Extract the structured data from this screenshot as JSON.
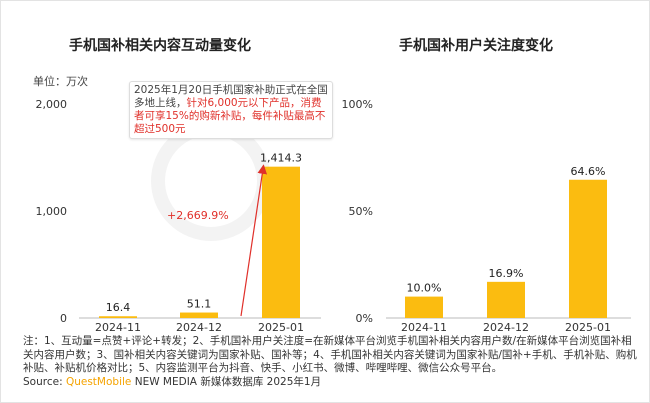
{
  "watermark": "QUEST MOBILE",
  "chart_data": [
    {
      "type": "bar",
      "title": "手机国补相关内容互动量变化",
      "unit_label": "单位：万次",
      "categories": [
        "2024-11",
        "2024-12",
        "2025-01"
      ],
      "values": [
        16.4,
        51.1,
        1414.3
      ],
      "value_labels": [
        "16.4",
        "51.1",
        "1,414.3"
      ],
      "yticks": [
        "0",
        "1,000",
        "2,000"
      ],
      "ylim": [
        0,
        2000
      ],
      "annotation_growth": "+2,669.9%",
      "callout": {
        "normal": "2025年1月20日手机国家补助正式在全国多地上线，",
        "highlight": "针对6,000元以下产品，消费者可享15%的购新补贴，每件补贴最高不超过500元"
      },
      "color": "#fbbc10"
    },
    {
      "type": "bar",
      "title": "手机国补用户关注度变化",
      "categories": [
        "2024-11",
        "2024-12",
        "2025-01"
      ],
      "values": [
        10.0,
        16.9,
        64.6
      ],
      "value_labels": [
        "10.0%",
        "16.9%",
        "64.6%"
      ],
      "yticks": [
        "0%",
        "50%",
        "100%"
      ],
      "ylim": [
        0,
        100
      ],
      "color": "#fbbc10"
    }
  ],
  "notes": "注：1、互动量=点赞+评论+转发；2、手机国补用户关注度=在新媒体平台浏览手机国补相关内容用户数/在新媒体平台浏览国补相关内容用户数；3、国补相关内容关键词为国家补贴、国补等；4、手机国补相关内容关键词为国家补贴/国补+手机、手机补贴、购机补贴、补贴机价格对比；5、内容监测平台为抖音、快手、小红书、微博、哔哩哔哩、微信公众号平台。",
  "source": {
    "label": "Source:",
    "brand": "QuestMobile",
    "rest": "NEW MEDIA 新媒体数据库 2025年1月"
  }
}
